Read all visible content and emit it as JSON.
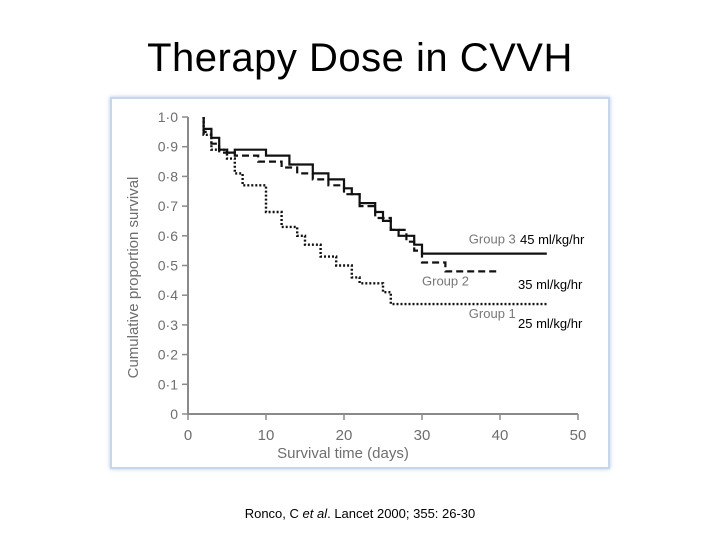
{
  "slide": {
    "title": "Therapy Dose in CVVH"
  },
  "dose_labels": {
    "group3": "45 ml/kg/hr",
    "group2": "35 ml/kg/hr",
    "group1": "25 ml/kg/hr"
  },
  "citation": {
    "author": "Ronco, C ",
    "etal": "et al",
    "rest": ". Lancet 2000; 355: 26-30"
  },
  "chart_data": {
    "type": "line",
    "title": "",
    "xlabel": "Survival time (days)",
    "ylabel": "Cumulative proportion survival",
    "xlim": [
      0,
      50
    ],
    "ylim": [
      0,
      1.0
    ],
    "xticks": [
      0,
      10,
      20,
      30,
      40,
      50
    ],
    "xtick_labels": [
      "0",
      "10",
      "20",
      "30",
      "40",
      "50"
    ],
    "yticks": [
      0,
      0.1,
      0.2,
      0.3,
      0.4,
      0.5,
      0.6,
      0.7,
      0.8,
      0.9,
      1.0
    ],
    "ytick_labels": [
      "0",
      "0·1",
      "0·2",
      "0·3",
      "0·4",
      "0·5",
      "0·6",
      "0·7",
      "0·8",
      "0·9",
      "1·0"
    ],
    "grid": false,
    "series": [
      {
        "name": "Group 3",
        "style": "solid",
        "points": [
          [
            2,
            1.0
          ],
          [
            2,
            0.96
          ],
          [
            3,
            0.96
          ],
          [
            3,
            0.93
          ],
          [
            4,
            0.93
          ],
          [
            4,
            0.89
          ],
          [
            5,
            0.89
          ],
          [
            5,
            0.88
          ],
          [
            6,
            0.88
          ],
          [
            6,
            0.89
          ],
          [
            10,
            0.89
          ],
          [
            10,
            0.87
          ],
          [
            13,
            0.87
          ],
          [
            13,
            0.84
          ],
          [
            16,
            0.84
          ],
          [
            16,
            0.81
          ],
          [
            18,
            0.81
          ],
          [
            18,
            0.79
          ],
          [
            20,
            0.79
          ],
          [
            20,
            0.76
          ],
          [
            21,
            0.76
          ],
          [
            21,
            0.74
          ],
          [
            22,
            0.74
          ],
          [
            22,
            0.71
          ],
          [
            24,
            0.71
          ],
          [
            24,
            0.68
          ],
          [
            25,
            0.68
          ],
          [
            25,
            0.65
          ],
          [
            26,
            0.65
          ],
          [
            26,
            0.62
          ],
          [
            27,
            0.62
          ],
          [
            27,
            0.6
          ],
          [
            29,
            0.6
          ],
          [
            29,
            0.57
          ],
          [
            30,
            0.57
          ],
          [
            30,
            0.54
          ],
          [
            46,
            0.54
          ]
        ]
      },
      {
        "name": "Group 2",
        "style": "dashed",
        "points": [
          [
            2,
            1.0
          ],
          [
            2,
            0.95
          ],
          [
            3,
            0.95
          ],
          [
            3,
            0.91
          ],
          [
            4,
            0.91
          ],
          [
            4,
            0.88
          ],
          [
            6,
            0.88
          ],
          [
            6,
            0.87
          ],
          [
            9,
            0.87
          ],
          [
            9,
            0.85
          ],
          [
            12,
            0.85
          ],
          [
            12,
            0.83
          ],
          [
            14,
            0.83
          ],
          [
            14,
            0.81
          ],
          [
            16,
            0.81
          ],
          [
            16,
            0.79
          ],
          [
            18,
            0.79
          ],
          [
            18,
            0.77
          ],
          [
            20,
            0.77
          ],
          [
            20,
            0.74
          ],
          [
            22,
            0.74
          ],
          [
            22,
            0.7
          ],
          [
            24,
            0.7
          ],
          [
            24,
            0.66
          ],
          [
            26,
            0.66
          ],
          [
            26,
            0.62
          ],
          [
            28,
            0.62
          ],
          [
            28,
            0.58
          ],
          [
            29,
            0.58
          ],
          [
            29,
            0.55
          ],
          [
            30,
            0.55
          ],
          [
            30,
            0.51
          ],
          [
            33,
            0.51
          ],
          [
            33,
            0.48
          ],
          [
            40,
            0.48
          ]
        ]
      },
      {
        "name": "Group 1",
        "style": "dotted",
        "points": [
          [
            2,
            1.0
          ],
          [
            2,
            0.94
          ],
          [
            3,
            0.94
          ],
          [
            3,
            0.89
          ],
          [
            5,
            0.89
          ],
          [
            5,
            0.86
          ],
          [
            6,
            0.86
          ],
          [
            6,
            0.81
          ],
          [
            7,
            0.81
          ],
          [
            7,
            0.77
          ],
          [
            10,
            0.77
          ],
          [
            10,
            0.68
          ],
          [
            12,
            0.68
          ],
          [
            12,
            0.63
          ],
          [
            14,
            0.63
          ],
          [
            14,
            0.6
          ],
          [
            15,
            0.6
          ],
          [
            15,
            0.57
          ],
          [
            17,
            0.57
          ],
          [
            17,
            0.53
          ],
          [
            19,
            0.53
          ],
          [
            19,
            0.5
          ],
          [
            21,
            0.5
          ],
          [
            21,
            0.46
          ],
          [
            22,
            0.46
          ],
          [
            22,
            0.44
          ],
          [
            25,
            0.44
          ],
          [
            25,
            0.41
          ],
          [
            26,
            0.41
          ],
          [
            26,
            0.37
          ],
          [
            46,
            0.37
          ]
        ]
      }
    ]
  }
}
